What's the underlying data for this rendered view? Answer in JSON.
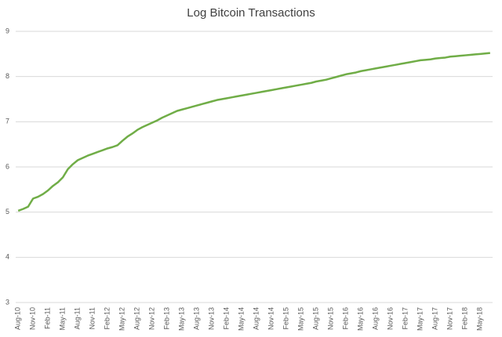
{
  "chart_data": {
    "type": "line",
    "title": "Log Bitcoin Transactions",
    "categories": [
      "Aug-10",
      null,
      null,
      "Nov-10",
      null,
      null,
      "Feb-11",
      null,
      null,
      "May-11",
      null,
      null,
      "Aug-11",
      null,
      null,
      "Nov-11",
      null,
      null,
      "Feb-12",
      null,
      null,
      "May-12",
      null,
      null,
      "Aug-12",
      null,
      null,
      "Nov-12",
      null,
      null,
      "Feb-13",
      null,
      null,
      "May-13",
      null,
      null,
      "Aug-13",
      null,
      null,
      "Nov-13",
      null,
      null,
      "Feb-14",
      null,
      null,
      "May-14",
      null,
      null,
      "Aug-14",
      null,
      null,
      "Nov-14",
      null,
      null,
      "Feb-15",
      null,
      null,
      "May-15",
      null,
      null,
      "Aug-15",
      null,
      null,
      "Nov-15",
      null,
      null,
      "Feb-16",
      null,
      null,
      "May-16",
      null,
      null,
      "Aug-16",
      null,
      null,
      "Nov-16",
      null,
      null,
      "Feb-17",
      null,
      null,
      "May-17",
      null,
      null,
      "Aug-17",
      null,
      null,
      "Nov-17",
      null,
      null,
      "Feb-18",
      null,
      null,
      "May-18",
      null,
      null
    ],
    "values": [
      5.03,
      5.07,
      5.12,
      5.3,
      5.34,
      5.4,
      5.48,
      5.58,
      5.66,
      5.77,
      5.95,
      6.06,
      6.15,
      6.2,
      6.25,
      6.29,
      6.33,
      6.37,
      6.41,
      6.44,
      6.48,
      6.58,
      6.67,
      6.74,
      6.82,
      6.88,
      6.93,
      6.98,
      7.03,
      7.09,
      7.14,
      7.19,
      7.24,
      7.27,
      7.3,
      7.33,
      7.36,
      7.39,
      7.42,
      7.45,
      7.48,
      7.5,
      7.52,
      7.54,
      7.56,
      7.58,
      7.6,
      7.62,
      7.64,
      7.66,
      7.68,
      7.7,
      7.72,
      7.74,
      7.76,
      7.78,
      7.8,
      7.82,
      7.84,
      7.86,
      7.89,
      7.91,
      7.93,
      7.96,
      7.99,
      8.02,
      8.05,
      8.07,
      8.09,
      8.12,
      8.14,
      8.16,
      8.18,
      8.2,
      8.22,
      8.24,
      8.26,
      8.28,
      8.3,
      8.32,
      8.34,
      8.36,
      8.37,
      8.38,
      8.4,
      8.41,
      8.42,
      8.44,
      8.45,
      8.46,
      8.47,
      8.48,
      8.49,
      8.5,
      8.51,
      8.52
    ],
    "color": "#70ad47",
    "ylim": [
      3,
      9
    ],
    "yticks": [
      3,
      4,
      5,
      6,
      7,
      8,
      9
    ],
    "grid": true
  }
}
